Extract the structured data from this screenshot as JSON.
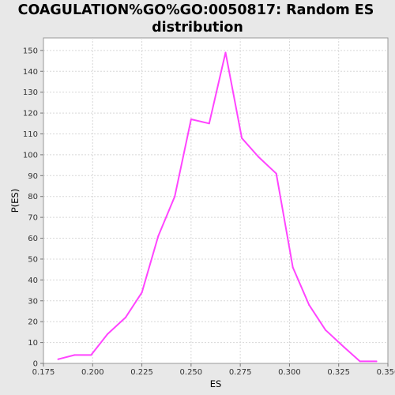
{
  "chart_data": {
    "type": "line",
    "title_lines": [
      "COAGULATION%GO%GO:0050817: Random ES",
      "distribution"
    ],
    "xlabel": "ES",
    "ylabel": "P(ES)",
    "xlim": [
      0.175,
      0.35
    ],
    "ylim": [
      0,
      156
    ],
    "x_ticks": [
      0.175,
      0.2,
      0.225,
      0.25,
      0.275,
      0.3,
      0.325,
      0.35
    ],
    "x_tick_labels": [
      "0.175",
      "0.200",
      "0.225",
      "0.250",
      "0.275",
      "0.300",
      "0.325",
      "0.350"
    ],
    "y_ticks": [
      0,
      10,
      20,
      30,
      40,
      50,
      60,
      70,
      80,
      90,
      100,
      110,
      120,
      130,
      140,
      150
    ],
    "y_tick_labels": [
      "0",
      "10",
      "20",
      "30",
      "40",
      "50",
      "60",
      "70",
      "80",
      "90",
      "100",
      "110",
      "120",
      "130",
      "140",
      "150"
    ],
    "grid": true,
    "series": [
      {
        "name": "P(ES)",
        "color": "#ff44ff",
        "x": [
          0.1825,
          0.1908,
          0.1992,
          0.2075,
          0.2167,
          0.225,
          0.2333,
          0.2417,
          0.25,
          0.2592,
          0.2675,
          0.2758,
          0.2842,
          0.2933,
          0.3017,
          0.31,
          0.3183,
          0.3275,
          0.3358,
          0.3442
        ],
        "y": [
          2,
          4,
          4,
          14,
          22,
          34,
          61,
          80,
          117,
          115,
          149,
          108,
          99,
          91,
          46,
          28,
          16,
          8,
          1,
          1
        ]
      }
    ]
  }
}
